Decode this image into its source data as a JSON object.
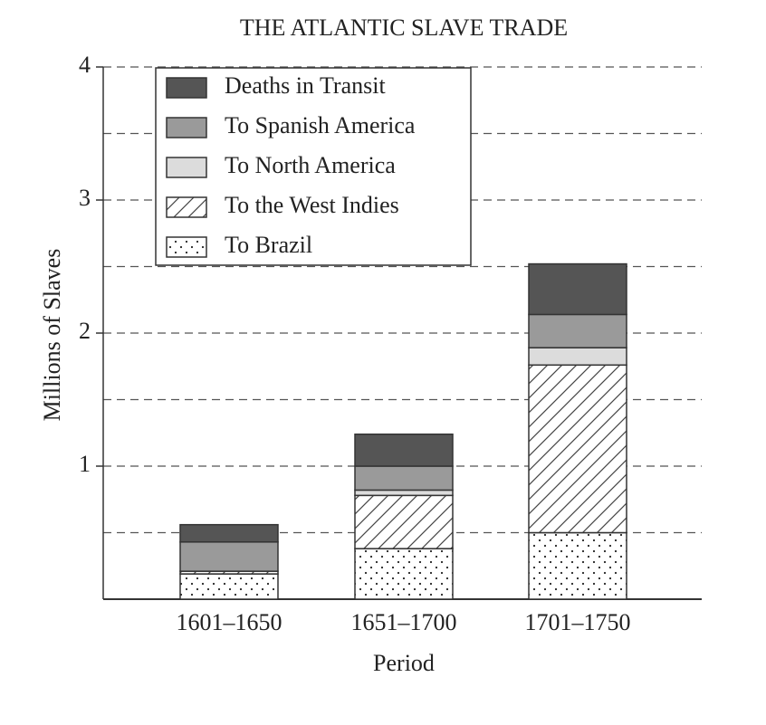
{
  "chart_data": {
    "type": "stacked_bar",
    "title": "THE ATLANTIC SLAVE TRADE",
    "x_label": "Period",
    "y_label": "Millions of Slaves",
    "categories": [
      "1601–1650",
      "1651–1700",
      "1701–1750"
    ],
    "series": [
      {
        "name": "To Brazil",
        "color": "#ffffff",
        "pattern": "dots",
        "values": [
          0.19,
          0.38,
          0.5
        ]
      },
      {
        "name": "To the West Indies",
        "color": "#ffffff",
        "pattern": "hatch",
        "values": [
          0.02,
          0.4,
          1.26
        ]
      },
      {
        "name": "To North America",
        "color": "#dcdcdc",
        "pattern": "solid",
        "values": [
          0,
          0.04,
          0.13
        ]
      },
      {
        "name": "To Spanish America",
        "color": "#9a9a9a",
        "pattern": "solid",
        "values": [
          0.22,
          0.18,
          0.25
        ]
      },
      {
        "name": "Deaths in Transit",
        "color": "#555555",
        "pattern": "solid",
        "values": [
          0.13,
          0.24,
          0.38
        ]
      }
    ],
    "ylim": [
      0,
      4
    ],
    "yticks": [
      1,
      2,
      3,
      4
    ],
    "minor_yticks": [
      0.5,
      1.5,
      2.5,
      3.5
    ],
    "grid": true,
    "legend": "upper left"
  }
}
